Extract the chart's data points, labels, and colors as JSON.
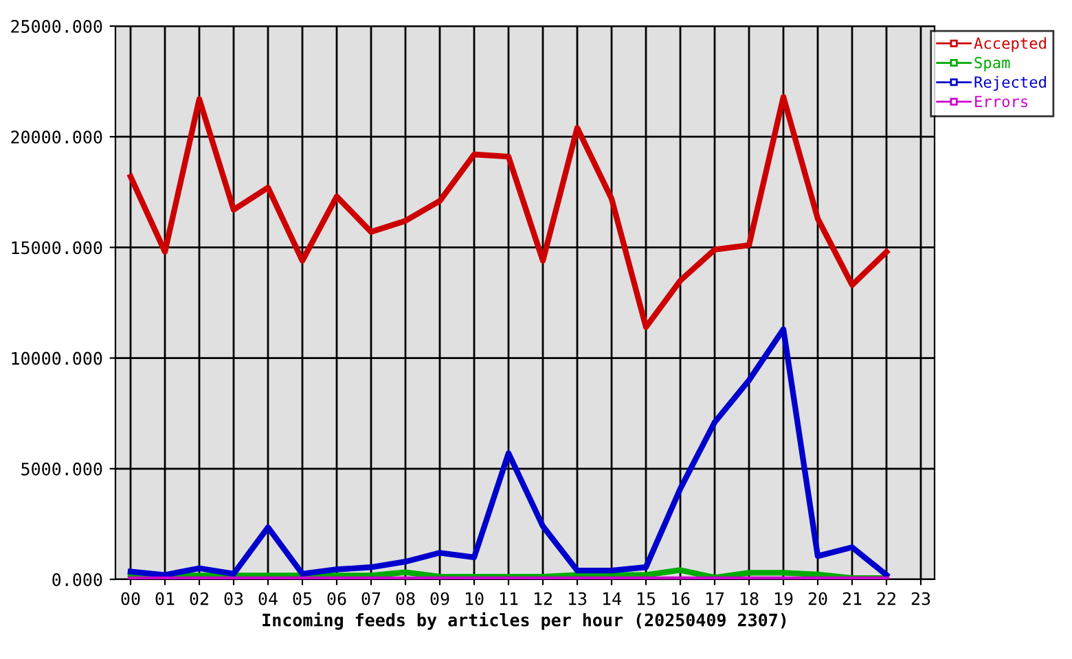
{
  "chart_data": {
    "type": "line",
    "xlabel": "Incoming feeds by articles per hour (20250409 2307)",
    "categories": [
      "00",
      "01",
      "02",
      "03",
      "04",
      "05",
      "06",
      "07",
      "08",
      "09",
      "10",
      "11",
      "12",
      "13",
      "14",
      "15",
      "16",
      "17",
      "18",
      "19",
      "20",
      "21",
      "22",
      "23"
    ],
    "series": [
      {
        "name": "Accepted",
        "color": "#cc0000",
        "values": [
          18200,
          14800,
          21700,
          16700,
          17700,
          14400,
          17300,
          15700,
          16200,
          17100,
          19200,
          19100,
          14400,
          20400,
          17200,
          11400,
          13500,
          14900,
          15100,
          21800,
          16300,
          13300,
          14800,
          null
        ]
      },
      {
        "name": "Spam",
        "color": "#00aa00",
        "values": [
          220,
          170,
          170,
          170,
          170,
          170,
          170,
          170,
          320,
          120,
          120,
          120,
          120,
          200,
          200,
          200,
          420,
          80,
          300,
          300,
          220,
          60,
          60,
          null
        ]
      },
      {
        "name": "Rejected",
        "color": "#0000cc",
        "values": [
          350,
          200,
          500,
          250,
          2350,
          250,
          450,
          550,
          800,
          1200,
          1000,
          5700,
          2400,
          400,
          400,
          550,
          4100,
          7100,
          9000,
          11300,
          1050,
          1450,
          200,
          null
        ]
      },
      {
        "name": "Errors",
        "color": "#cc00cc",
        "values": [
          0,
          0,
          0,
          0,
          0,
          0,
          0,
          0,
          0,
          0,
          0,
          0,
          0,
          0,
          0,
          0,
          0,
          0,
          0,
          0,
          0,
          0,
          0,
          null
        ]
      }
    ],
    "ylim": [
      0,
      25000
    ],
    "yticks": [
      {
        "value": 0,
        "label": "0.000"
      },
      {
        "value": 5000,
        "label": "5000.000"
      },
      {
        "value": 10000,
        "label": "10000.000"
      },
      {
        "value": 15000,
        "label": "15000.000"
      },
      {
        "value": 20000,
        "label": "20000.000"
      },
      {
        "value": 25000,
        "label": "25000.000"
      }
    ],
    "grid": true,
    "legend": "top right",
    "line_style": "solid"
  }
}
